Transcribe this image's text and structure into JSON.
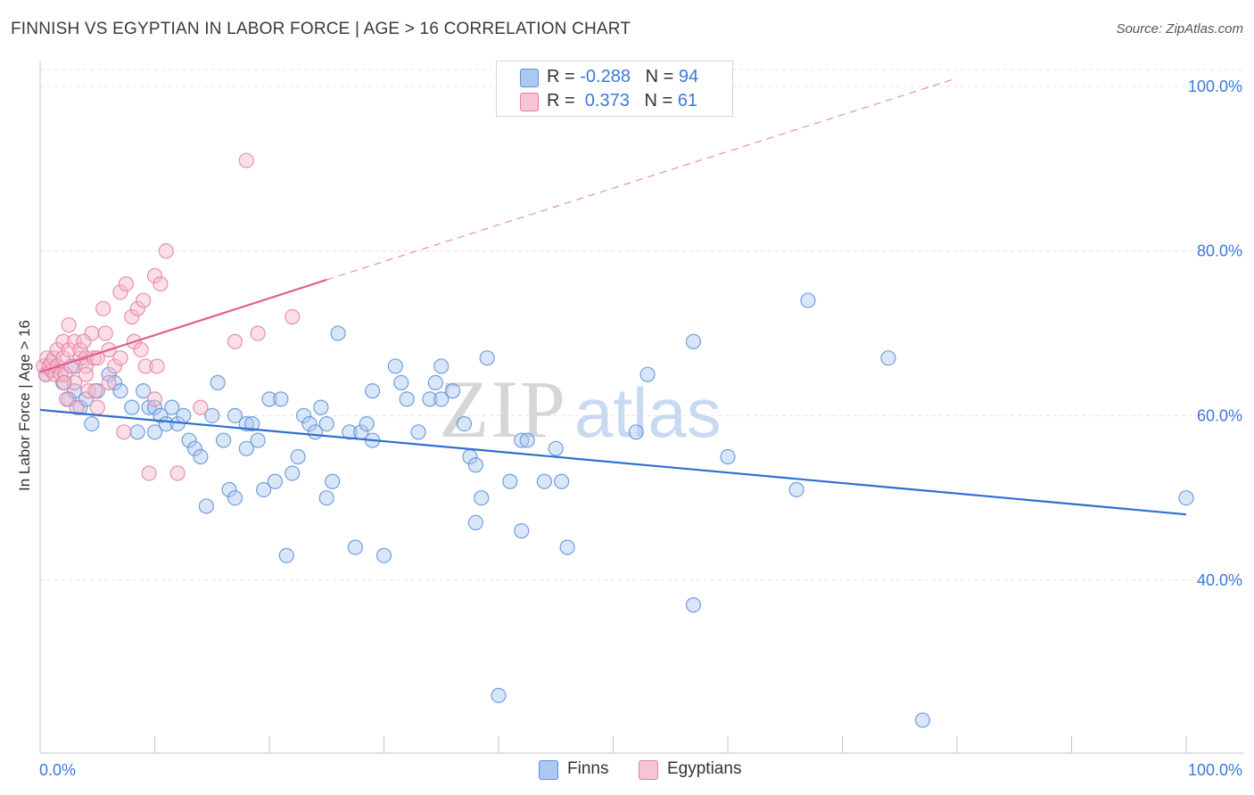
{
  "title": "FINNISH VS EGYPTIAN IN LABOR FORCE | AGE > 16 CORRELATION CHART",
  "source": "Source: ZipAtlas.com",
  "watermark": {
    "zip": "ZIP",
    "atlas": "atlas"
  },
  "legend_top": {
    "rows": [
      {
        "r_label": "R = ",
        "r_value": "-0.288",
        "n_label": "N = ",
        "n_value": "94"
      },
      {
        "r_label": "R = ",
        "r_value": " 0.373",
        "n_label": "N = ",
        "n_value": "61"
      }
    ]
  },
  "legend_bottom": {
    "finns": "Finns",
    "egyptians": "Egyptians"
  },
  "colors": {
    "finns_fill": "#aac8f0",
    "finns_stroke": "#5b8fd8",
    "finns_line": "#2f6fd0",
    "egypt_fill": "#f6b8cb",
    "egypt_stroke": "#e47fa0",
    "egypt_line": "#e0608a",
    "tick_text": "#3b78d8",
    "grid": "#e3e3e3"
  },
  "chart_data": {
    "type": "scatter",
    "title": "FINNISH VS EGYPTIAN IN LABOR FORCE | AGE > 16 CORRELATION CHART",
    "xlabel": "",
    "ylabel": "In Labor Force | Age > 16",
    "xlim": [
      0,
      100
    ],
    "ylim": [
      19,
      104
    ],
    "x_tick_labels": [
      "0.0%",
      "100.0%"
    ],
    "y_ticks": [
      {
        "value": 100,
        "label": "100.0%"
      },
      {
        "value": 80,
        "label": "80.0%"
      },
      {
        "value": 60,
        "label": "60.0%"
      },
      {
        "value": 40,
        "label": "40.0%"
      }
    ],
    "series": [
      {
        "name": "Finns",
        "r": -0.288,
        "n": 94,
        "trend": {
          "x0": 0,
          "y0": 60.7,
          "x1": 100,
          "y1": 48.0
        },
        "points": [
          [
            0.5,
            65
          ],
          [
            1.5,
            66
          ],
          [
            2,
            64
          ],
          [
            2.5,
            62
          ],
          [
            3,
            63
          ],
          [
            3.5,
            61
          ],
          [
            4,
            62
          ],
          [
            4.5,
            59
          ],
          [
            5,
            63
          ],
          [
            6,
            65
          ],
          [
            6.5,
            64
          ],
          [
            7,
            63
          ],
          [
            8,
            61
          ],
          [
            8.5,
            58
          ],
          [
            9,
            63
          ],
          [
            9.5,
            61
          ],
          [
            10,
            61
          ],
          [
            10.5,
            60
          ],
          [
            11,
            59
          ],
          [
            11.5,
            61
          ],
          [
            12,
            59
          ],
          [
            12.5,
            60
          ],
          [
            13,
            57
          ],
          [
            13.5,
            56
          ],
          [
            14,
            55
          ],
          [
            14.5,
            49
          ],
          [
            15,
            60
          ],
          [
            15.5,
            64
          ],
          [
            16,
            57
          ],
          [
            16.5,
            51
          ],
          [
            17,
            50
          ],
          [
            17,
            60
          ],
          [
            18,
            56
          ],
          [
            18,
            59
          ],
          [
            18.5,
            59
          ],
          [
            19,
            57
          ],
          [
            19.5,
            51
          ],
          [
            20,
            62
          ],
          [
            20.5,
            52
          ],
          [
            21,
            62
          ],
          [
            21.5,
            43
          ],
          [
            22,
            53
          ],
          [
            22.5,
            55
          ],
          [
            23,
            60
          ],
          [
            23.5,
            59
          ],
          [
            24,
            58
          ],
          [
            24.5,
            61
          ],
          [
            25,
            59
          ],
          [
            25.5,
            52
          ],
          [
            25,
            50
          ],
          [
            26,
            70
          ],
          [
            27,
            58
          ],
          [
            27.5,
            44
          ],
          [
            28,
            58
          ],
          [
            28.5,
            59
          ],
          [
            29,
            57
          ],
          [
            29,
            63
          ],
          [
            30,
            43
          ],
          [
            31,
            66
          ],
          [
            31.5,
            64
          ],
          [
            32,
            62
          ],
          [
            33,
            58
          ],
          [
            34,
            62
          ],
          [
            34.5,
            64
          ],
          [
            35,
            62
          ],
          [
            35,
            66
          ],
          [
            36,
            63
          ],
          [
            37,
            59
          ],
          [
            37.5,
            55
          ],
          [
            38,
            54
          ],
          [
            38.5,
            50
          ],
          [
            38,
            47
          ],
          [
            39,
            67
          ],
          [
            40,
            26
          ],
          [
            41,
            52
          ],
          [
            42,
            57
          ],
          [
            42.5,
            57
          ],
          [
            44,
            52
          ],
          [
            45,
            56
          ],
          [
            45.5,
            52
          ],
          [
            46,
            44
          ],
          [
            52,
            58
          ],
          [
            53,
            65
          ],
          [
            57,
            69
          ],
          [
            57,
            37
          ],
          [
            60,
            55
          ],
          [
            66,
            51
          ],
          [
            67,
            74
          ],
          [
            74,
            67
          ],
          [
            77,
            23
          ],
          [
            100,
            50
          ],
          [
            42,
            46
          ],
          [
            10,
            58
          ],
          [
            3,
            66
          ]
        ]
      },
      {
        "name": "Egyptians",
        "r": 0.373,
        "n": 61,
        "trend": {
          "x0": 0,
          "y0": 65.3,
          "x1": 25,
          "y1": 76.5
        },
        "trend_dashed": {
          "x0": 25,
          "y0": 76.5,
          "x1": 80,
          "y1": 101
        },
        "points": [
          [
            0.3,
            66
          ],
          [
            0.5,
            65
          ],
          [
            0.6,
            67
          ],
          [
            0.8,
            66
          ],
          [
            1,
            65.5
          ],
          [
            1,
            66.5
          ],
          [
            1.2,
            67
          ],
          [
            1.3,
            65
          ],
          [
            1.5,
            66
          ],
          [
            1.5,
            68
          ],
          [
            1.8,
            65
          ],
          [
            2,
            67
          ],
          [
            2,
            69
          ],
          [
            2.2,
            65
          ],
          [
            2.3,
            62
          ],
          [
            2.5,
            71
          ],
          [
            2.5,
            68
          ],
          [
            2.7,
            66
          ],
          [
            3,
            69
          ],
          [
            3,
            64
          ],
          [
            3.2,
            61
          ],
          [
            3.5,
            67
          ],
          [
            3.5,
            68
          ],
          [
            4,
            67
          ],
          [
            4,
            66
          ],
          [
            4,
            65
          ],
          [
            4.2,
            63
          ],
          [
            4.5,
            70
          ],
          [
            4.7,
            67
          ],
          [
            4.8,
            63
          ],
          [
            5,
            61
          ],
          [
            5,
            67
          ],
          [
            5.5,
            73
          ],
          [
            5.7,
            70
          ],
          [
            6,
            68
          ],
          [
            6,
            64
          ],
          [
            6.5,
            66
          ],
          [
            7,
            67
          ],
          [
            7,
            75
          ],
          [
            7.3,
            58
          ],
          [
            7.5,
            76
          ],
          [
            8,
            72
          ],
          [
            8.2,
            69
          ],
          [
            8.5,
            73
          ],
          [
            8.8,
            68
          ],
          [
            9,
            74
          ],
          [
            9.2,
            66
          ],
          [
            9.5,
            53
          ],
          [
            10,
            77
          ],
          [
            10,
            62
          ],
          [
            10.2,
            66
          ],
          [
            10.5,
            76
          ],
          [
            11,
            80
          ],
          [
            12,
            53
          ],
          [
            14,
            61
          ],
          [
            17,
            69
          ],
          [
            18,
            91
          ],
          [
            19,
            70
          ],
          [
            22,
            72
          ],
          [
            3.8,
            69
          ],
          [
            2.1,
            64
          ]
        ]
      }
    ]
  }
}
